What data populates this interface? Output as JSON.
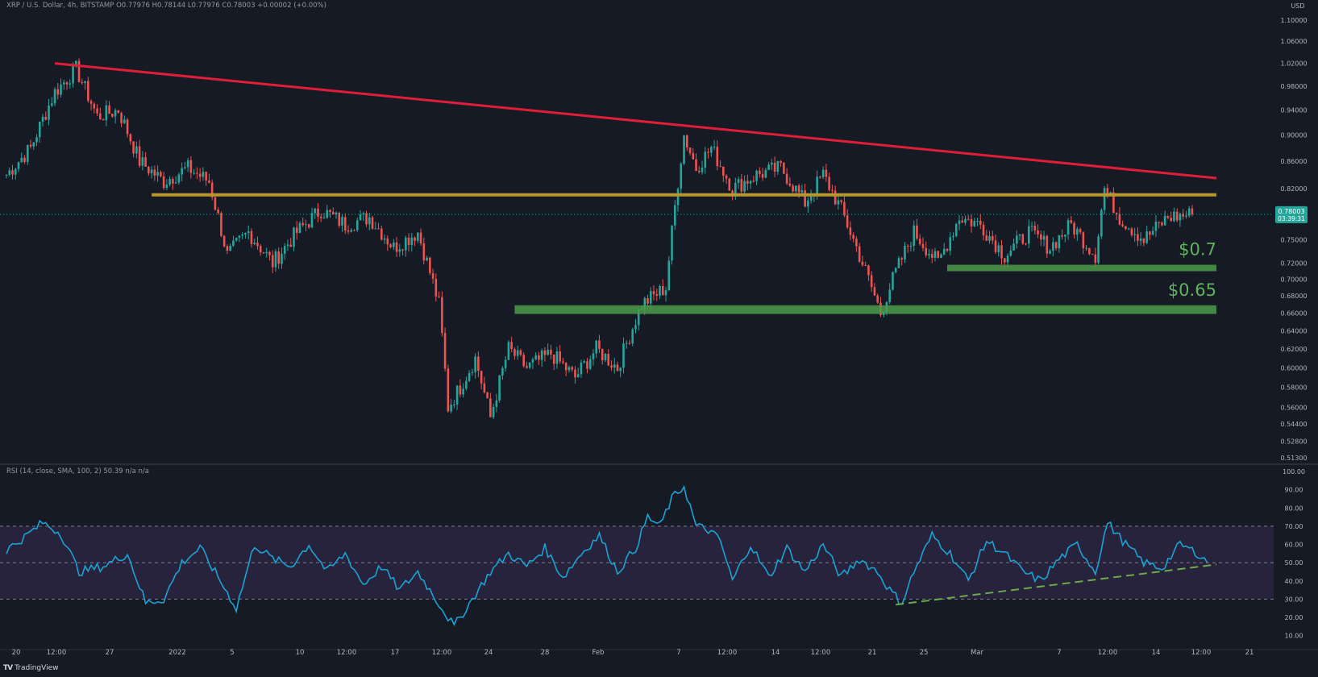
{
  "header": {
    "symbol": "XRP / U.S. Dollar, 4h, BITSTAMP",
    "ohlc": "O0.77976  H0.78144  L0.77976  C0.78003  +0.00002 (+0.00%)"
  },
  "rsi_header": "RSI (14, close, SMA, 100, 2)  50.39  n/a  n/a",
  "price_axis_currency": "USD",
  "current_price_label": "0.78003",
  "countdown_label": "03:39:31",
  "footer": {
    "icon": "tradingview-logo-icon",
    "brand": "TradingView"
  },
  "colors": {
    "background": "#161a25",
    "up_candle": "#26a69a",
    "down_candle": "#ef5350",
    "resistance_trendline": "#e01e37",
    "horizontal_level": "#b8972e",
    "support_zone": "#4c9a4a",
    "rsi_line": "#1aa3d4",
    "rsi_band_fill": "#2a2540",
    "rsi_trendline": "#6cab4a"
  },
  "chart_data": [
    {
      "type": "candlestick",
      "title": "XRP / U.S. Dollar, 4h, BITSTAMP",
      "y_scale": "log",
      "ylim": [
        0.51,
        1.12
      ],
      "y_ticks": [
        "1.10000",
        "1.06000",
        "1.02000",
        "0.98000",
        "0.94000",
        "0.90000",
        "0.86000",
        "0.82000",
        "0.75000",
        "0.72000",
        "0.70000",
        "0.68000",
        "0.66000",
        "0.64000",
        "0.62000",
        "0.60000",
        "0.58000",
        "0.56000",
        "0.54400",
        "0.52800",
        "0.51300"
      ],
      "x_ticks": [
        "20",
        "12:00",
        "27",
        "2022",
        "5",
        "10",
        "12:00",
        "17",
        "12:00",
        "24",
        "28",
        "Feb",
        "7",
        "12:00",
        "14",
        "12:00",
        "21",
        "25",
        "Mar",
        "7",
        "12:00",
        "14",
        "12:00",
        "21"
      ],
      "price_path": [
        [
          0,
          0.84
        ],
        [
          8,
          0.88
        ],
        [
          16,
          0.97
        ],
        [
          23,
          1.01
        ],
        [
          30,
          0.93
        ],
        [
          37,
          0.94
        ],
        [
          44,
          0.86
        ],
        [
          52,
          0.83
        ],
        [
          60,
          0.85
        ],
        [
          67,
          0.83
        ],
        [
          73,
          0.73
        ],
        [
          80,
          0.76
        ],
        [
          88,
          0.72
        ],
        [
          96,
          0.76
        ],
        [
          104,
          0.79
        ],
        [
          112,
          0.77
        ],
        [
          120,
          0.78
        ],
        [
          128,
          0.74
        ],
        [
          136,
          0.76
        ],
        [
          143,
          0.67
        ],
        [
          146,
          0.56
        ],
        [
          150,
          0.58
        ],
        [
          155,
          0.61
        ],
        [
          160,
          0.55
        ],
        [
          166,
          0.62
        ],
        [
          172,
          0.6
        ],
        [
          180,
          0.615
        ],
        [
          188,
          0.59
        ],
        [
          195,
          0.62
        ],
        [
          202,
          0.6
        ],
        [
          210,
          0.67
        ],
        [
          218,
          0.69
        ],
        [
          224,
          0.9
        ],
        [
          228,
          0.85
        ],
        [
          233,
          0.88
        ],
        [
          240,
          0.82
        ],
        [
          248,
          0.84
        ],
        [
          256,
          0.85
        ],
        [
          264,
          0.8
        ],
        [
          270,
          0.84
        ],
        [
          276,
          0.79
        ],
        [
          281,
          0.74
        ],
        [
          285,
          0.7
        ],
        [
          289,
          0.66
        ],
        [
          293,
          0.7
        ],
        [
          300,
          0.76
        ],
        [
          308,
          0.72
        ],
        [
          315,
          0.78
        ],
        [
          322,
          0.77
        ],
        [
          330,
          0.73
        ],
        [
          338,
          0.76
        ],
        [
          345,
          0.74
        ],
        [
          352,
          0.77
        ],
        [
          360,
          0.73
        ],
        [
          363,
          0.82
        ],
        [
          368,
          0.78
        ],
        [
          376,
          0.75
        ],
        [
          384,
          0.78
        ],
        [
          392,
          0.784
        ]
      ],
      "lines": [
        {
          "name": "descending resistance",
          "from": [
            16,
            1.02
          ],
          "to": [
            400,
            0.835
          ]
        },
        {
          "name": "horizontal resistance",
          "from": [
            48,
            0.811
          ],
          "to": [
            400,
            0.811
          ]
        }
      ],
      "zones": [
        {
          "label": "$0.7",
          "low": 0.71,
          "high": 0.718,
          "from": 311,
          "to": 400
        },
        {
          "label": "$0.65",
          "low": 0.659,
          "high": 0.669,
          "from": 168,
          "to": 400
        }
      ]
    },
    {
      "type": "line",
      "title": "RSI (14, close, SMA, 100, 2)",
      "ylim": [
        5,
        100
      ],
      "y_ticks": [
        "100.00",
        "90.00",
        "80.00",
        "70.00",
        "60.00",
        "50.00",
        "40.00",
        "30.00",
        "20.00",
        "10.00"
      ],
      "band": [
        30,
        70
      ],
      "midline": 50,
      "values": [
        [
          0,
          57
        ],
        [
          6,
          64
        ],
        [
          12,
          72
        ],
        [
          18,
          66
        ],
        [
          24,
          45
        ],
        [
          32,
          48
        ],
        [
          40,
          55
        ],
        [
          46,
          28
        ],
        [
          52,
          30
        ],
        [
          58,
          50
        ],
        [
          64,
          58
        ],
        [
          70,
          42
        ],
        [
          76,
          25
        ],
        [
          82,
          60
        ],
        [
          88,
          52
        ],
        [
          94,
          48
        ],
        [
          100,
          60
        ],
        [
          106,
          45
        ],
        [
          112,
          55
        ],
        [
          118,
          38
        ],
        [
          124,
          48
        ],
        [
          130,
          35
        ],
        [
          136,
          45
        ],
        [
          142,
          30
        ],
        [
          148,
          15
        ],
        [
          154,
          30
        ],
        [
          160,
          45
        ],
        [
          166,
          55
        ],
        [
          172,
          48
        ],
        [
          178,
          58
        ],
        [
          184,
          42
        ],
        [
          190,
          55
        ],
        [
          196,
          65
        ],
        [
          202,
          45
        ],
        [
          208,
          58
        ],
        [
          212,
          75
        ],
        [
          216,
          70
        ],
        [
          220,
          85
        ],
        [
          224,
          92
        ],
        [
          228,
          70
        ],
        [
          232,
          68
        ],
        [
          236,
          62
        ],
        [
          240,
          40
        ],
        [
          246,
          60
        ],
        [
          252,
          42
        ],
        [
          258,
          58
        ],
        [
          264,
          45
        ],
        [
          270,
          60
        ],
        [
          276,
          42
        ],
        [
          282,
          52
        ],
        [
          288,
          45
        ],
        [
          292,
          35
        ],
        [
          296,
          28
        ],
        [
          300,
          45
        ],
        [
          306,
          65
        ],
        [
          312,
          55
        ],
        [
          318,
          40
        ],
        [
          324,
          62
        ],
        [
          330,
          55
        ],
        [
          336,
          45
        ],
        [
          342,
          40
        ],
        [
          348,
          52
        ],
        [
          354,
          60
        ],
        [
          360,
          45
        ],
        [
          364,
          72
        ],
        [
          370,
          60
        ],
        [
          376,
          50
        ],
        [
          382,
          47
        ],
        [
          388,
          60
        ],
        [
          394,
          55
        ],
        [
          397,
          50
        ]
      ],
      "trendline": {
        "from": [
          294,
          27
        ],
        "to": [
          400,
          49
        ]
      }
    }
  ]
}
